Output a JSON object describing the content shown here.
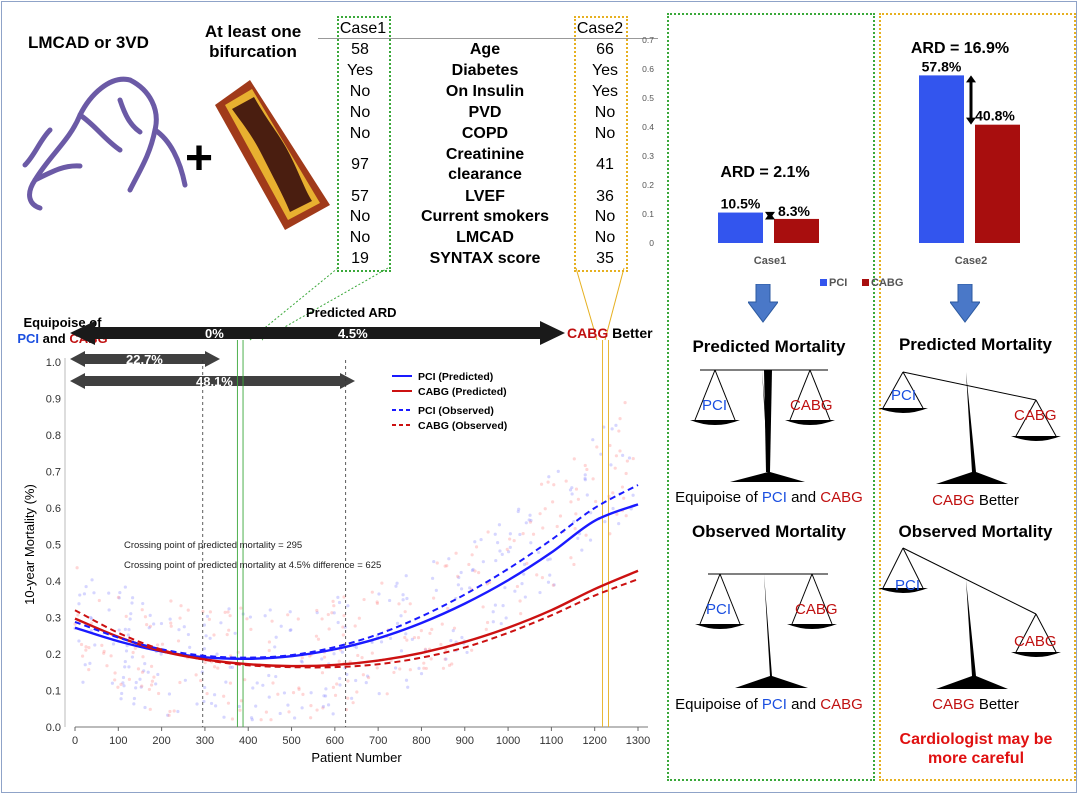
{
  "top": {
    "lmcad_label": "LMCAD or 3VD",
    "bifurcation_label": "At least one bifurcation",
    "plus": "+"
  },
  "table": {
    "case1_header": "Case1",
    "case2_header": "Case2",
    "rows": [
      {
        "label": "Age",
        "case1": "58",
        "case2": "66"
      },
      {
        "label": "Diabetes",
        "case1": "Yes",
        "case2": "Yes"
      },
      {
        "label": "On Insulin",
        "case1": "No",
        "case2": "Yes"
      },
      {
        "label": "PVD",
        "case1": "No",
        "case2": "No"
      },
      {
        "label": "COPD",
        "case1": "No",
        "case2": "No"
      },
      {
        "label": "Creatinine clearance",
        "case1": "97",
        "case2": "41"
      },
      {
        "label": "LVEF",
        "case1": "57",
        "case2": "36"
      },
      {
        "label": "Current smokers",
        "case1": "No",
        "case2": "No"
      },
      {
        "label": "LMCAD",
        "case1": "No",
        "case2": "No"
      },
      {
        "label": "SYNTAX score",
        "case1": "19",
        "case2": "35"
      }
    ]
  },
  "arrows": {
    "predicted_ard": "Predicted ARD",
    "equipoise_prefix": "Equipoise of",
    "pci": "PCI",
    "and": "and",
    "cabg": "CABG",
    "better": "Better",
    "zero": "0%",
    "mid": "4.5%",
    "pct1": "22.7%",
    "pct2": "48.1%"
  },
  "chart_data": [
    {
      "type": "line",
      "xlabel": "Patient Number",
      "ylabel": "10-year Mortality (%)",
      "xlim": [
        0,
        1300
      ],
      "ylim": [
        0,
        1.0
      ],
      "xticks": [
        0,
        100,
        200,
        300,
        400,
        500,
        600,
        700,
        800,
        900,
        1000,
        1100,
        1200,
        1300
      ],
      "yticks": [
        0.0,
        0.1,
        0.2,
        0.3,
        0.4,
        0.5,
        0.6,
        0.7,
        0.8,
        0.9,
        1.0
      ],
      "legend_position": "top-right",
      "annotations": [
        "Crossing point of predicted mortality = 295",
        "Crossing point of predicted mortality at 4.5% difference = 625"
      ],
      "vlines": [
        295,
        625
      ],
      "series": [
        {
          "name": "PCI (Predicted)",
          "color": "#1a1aff",
          "dash": "solid",
          "x": [
            0,
            100,
            200,
            300,
            400,
            500,
            600,
            700,
            800,
            900,
            1000,
            1100,
            1200,
            1300
          ],
          "y": [
            0.272,
            0.235,
            0.207,
            0.191,
            0.187,
            0.194,
            0.213,
            0.243,
            0.285,
            0.338,
            0.402,
            0.478,
            0.565,
            0.61
          ]
        },
        {
          "name": "CABG (Predicted)",
          "color": "#cc1111",
          "dash": "solid",
          "x": [
            0,
            100,
            200,
            300,
            400,
            500,
            600,
            700,
            800,
            900,
            1000,
            1100,
            1200,
            1300
          ],
          "y": [
            0.297,
            0.247,
            0.208,
            0.185,
            0.172,
            0.167,
            0.17,
            0.182,
            0.203,
            0.233,
            0.272,
            0.32,
            0.378,
            0.428
          ]
        },
        {
          "name": "PCI (Observed)",
          "color": "#1a1aff",
          "dash": "dashed",
          "x": [
            0,
            100,
            200,
            300,
            400,
            500,
            600,
            700,
            800,
            900,
            1000,
            1100,
            1200,
            1300
          ],
          "y": [
            0.288,
            0.245,
            0.213,
            0.195,
            0.19,
            0.197,
            0.219,
            0.254,
            0.303,
            0.363,
            0.433,
            0.513,
            0.6,
            0.663
          ]
        },
        {
          "name": "CABG (Observed)",
          "color": "#cc1111",
          "dash": "dashed",
          "x": [
            0,
            100,
            200,
            300,
            400,
            500,
            600,
            700,
            800,
            900,
            1000,
            1100,
            1200,
            1300
          ],
          "y": [
            0.32,
            0.258,
            0.212,
            0.184,
            0.169,
            0.164,
            0.164,
            0.172,
            0.19,
            0.218,
            0.258,
            0.306,
            0.36,
            0.405
          ]
        }
      ]
    },
    {
      "type": "bar",
      "categories": [
        "Case1",
        "Case2"
      ],
      "ylim": [
        0,
        0.7
      ],
      "yticks": [
        0,
        0.1,
        0.2,
        0.3,
        0.4,
        0.5,
        0.6,
        0.7
      ],
      "series": [
        {
          "name": "PCI",
          "color": "#3355ee",
          "values": [
            0.105,
            0.578
          ],
          "labels": [
            "10.5%",
            "57.8%"
          ]
        },
        {
          "name": "CABG",
          "color": "#a80e0e",
          "values": [
            0.083,
            0.408
          ],
          "labels": [
            "8.3%",
            "40.8%"
          ]
        }
      ],
      "annotations": [
        "ARD = 2.1%",
        "ARD = 16.9%"
      ],
      "legend_position": "bottom"
    }
  ],
  "right": {
    "predicted_mortality": "Predicted Mortality",
    "observed_mortality": "Observed Mortality",
    "equipoise_of": "Equipoise of",
    "and": "and",
    "pci": "PCI",
    "cabg": "CABG",
    "better": "Better",
    "cardiologist_note": "Cardiologist may be more careful"
  },
  "colors": {
    "pci": "#1b4fe0",
    "cabg": "#c01010",
    "case1_box": "#3aa83a",
    "case2_box": "#e6b020"
  }
}
